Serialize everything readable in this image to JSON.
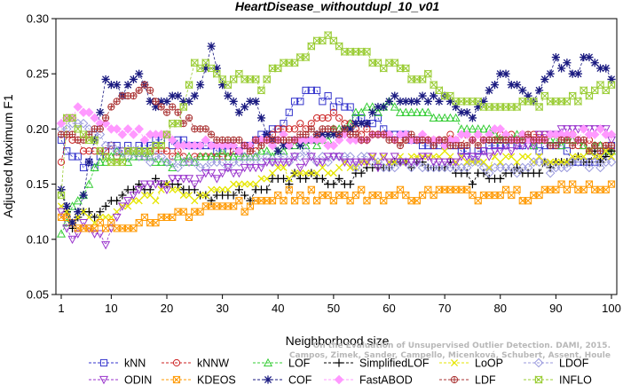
{
  "chart_data": {
    "type": "line",
    "title": "HeartDisease_withoutdupl_10_v01",
    "xlabel": "Neighborhood size",
    "ylabel": "Adjusted Maximum F1",
    "xlim": [
      1,
      100
    ],
    "ylim": [
      0.05,
      0.3
    ],
    "x_ticks": [
      "1",
      "10",
      "20",
      "30",
      "40",
      "50",
      "60",
      "70",
      "80",
      "90",
      "100"
    ],
    "y_ticks": [
      "0.05",
      "0.10",
      "0.15",
      "0.20",
      "0.25",
      "0.30"
    ],
    "grid": false,
    "legend_position": "bottom",
    "watermark_lines": [
      "Campos, Zimek, Sander, Campello, Micenková, Schubert, Assent, Houle",
      "On the Evaluation of Unsupervised Outlier Detection. DAMI, 2015."
    ],
    "series": [
      {
        "name": "kNN",
        "color": "#3333cc",
        "marker": "square",
        "anchors": [
          [
            1,
            0.188
          ],
          [
            3,
            0.175
          ],
          [
            5,
            0.165
          ],
          [
            7,
            0.17
          ],
          [
            10,
            0.18
          ],
          [
            15,
            0.185
          ],
          [
            20,
            0.19
          ],
          [
            25,
            0.185
          ],
          [
            30,
            0.18
          ],
          [
            35,
            0.185
          ],
          [
            40,
            0.2
          ],
          [
            45,
            0.235
          ],
          [
            50,
            0.225
          ],
          [
            55,
            0.21
          ],
          [
            60,
            0.2
          ],
          [
            65,
            0.19
          ],
          [
            70,
            0.183
          ],
          [
            75,
            0.18
          ],
          [
            80,
            0.185
          ],
          [
            85,
            0.185
          ],
          [
            90,
            0.185
          ],
          [
            95,
            0.165
          ],
          [
            100,
            0.18
          ]
        ]
      },
      {
        "name": "kNNW",
        "color": "#cc2222",
        "marker": "circle",
        "anchors": [
          [
            1,
            0.17
          ],
          [
            2,
            0.195
          ],
          [
            5,
            0.185
          ],
          [
            8,
            0.18
          ],
          [
            10,
            0.18
          ],
          [
            15,
            0.178
          ],
          [
            20,
            0.175
          ],
          [
            25,
            0.175
          ],
          [
            30,
            0.175
          ],
          [
            35,
            0.18
          ],
          [
            40,
            0.2
          ],
          [
            45,
            0.205
          ],
          [
            50,
            0.21
          ],
          [
            55,
            0.2
          ],
          [
            60,
            0.195
          ],
          [
            65,
            0.19
          ],
          [
            70,
            0.19
          ],
          [
            75,
            0.19
          ],
          [
            80,
            0.19
          ],
          [
            85,
            0.193
          ],
          [
            90,
            0.193
          ],
          [
            95,
            0.19
          ],
          [
            100,
            0.18
          ]
        ]
      },
      {
        "name": "LOF",
        "color": "#33cc33",
        "marker": "triangle-up",
        "anchors": [
          [
            1,
            0.105
          ],
          [
            3,
            0.13
          ],
          [
            5,
            0.14
          ],
          [
            7,
            0.16
          ],
          [
            10,
            0.175
          ],
          [
            15,
            0.175
          ],
          [
            20,
            0.17
          ],
          [
            25,
            0.17
          ],
          [
            30,
            0.175
          ],
          [
            35,
            0.175
          ],
          [
            40,
            0.18
          ],
          [
            45,
            0.185
          ],
          [
            50,
            0.195
          ],
          [
            55,
            0.215
          ],
          [
            60,
            0.22
          ],
          [
            65,
            0.215
          ],
          [
            70,
            0.21
          ],
          [
            75,
            0.2
          ],
          [
            80,
            0.195
          ],
          [
            85,
            0.19
          ],
          [
            90,
            0.19
          ],
          [
            95,
            0.185
          ],
          [
            100,
            0.18
          ]
        ]
      },
      {
        "name": "SimplifiedLOF",
        "color": "#000000",
        "marker": "plus",
        "anchors": [
          [
            1,
            0.14
          ],
          [
            3,
            0.11
          ],
          [
            5,
            0.125
          ],
          [
            7,
            0.12
          ],
          [
            10,
            0.135
          ],
          [
            15,
            0.15
          ],
          [
            20,
            0.15
          ],
          [
            25,
            0.14
          ],
          [
            30,
            0.14
          ],
          [
            35,
            0.14
          ],
          [
            40,
            0.155
          ],
          [
            45,
            0.155
          ],
          [
            50,
            0.15
          ],
          [
            55,
            0.16
          ],
          [
            60,
            0.168
          ],
          [
            65,
            0.17
          ],
          [
            70,
            0.168
          ],
          [
            75,
            0.155
          ],
          [
            80,
            0.16
          ],
          [
            85,
            0.16
          ],
          [
            90,
            0.17
          ],
          [
            95,
            0.175
          ],
          [
            100,
            0.175
          ]
        ]
      },
      {
        "name": "LoOP",
        "color": "#e6e600",
        "marker": "x",
        "anchors": [
          [
            1,
            0.13
          ],
          [
            3,
            0.12
          ],
          [
            5,
            0.12
          ],
          [
            7,
            0.115
          ],
          [
            10,
            0.125
          ],
          [
            15,
            0.135
          ],
          [
            20,
            0.145
          ],
          [
            25,
            0.14
          ],
          [
            30,
            0.145
          ],
          [
            35,
            0.15
          ],
          [
            40,
            0.16
          ],
          [
            45,
            0.16
          ],
          [
            50,
            0.165
          ],
          [
            55,
            0.17
          ],
          [
            60,
            0.172
          ],
          [
            65,
            0.175
          ],
          [
            70,
            0.175
          ],
          [
            75,
            0.17
          ],
          [
            80,
            0.17
          ],
          [
            85,
            0.172
          ],
          [
            90,
            0.172
          ],
          [
            95,
            0.175
          ],
          [
            100,
            0.178
          ]
        ]
      },
      {
        "name": "LDOF",
        "color": "#9999dd",
        "marker": "diamond",
        "anchors": [
          [
            1,
            0.2
          ],
          [
            3,
            0.205
          ],
          [
            5,
            0.21
          ],
          [
            7,
            0.195
          ],
          [
            10,
            0.18
          ],
          [
            15,
            0.175
          ],
          [
            20,
            0.17
          ],
          [
            25,
            0.168
          ],
          [
            30,
            0.17
          ],
          [
            35,
            0.17
          ],
          [
            40,
            0.175
          ],
          [
            45,
            0.175
          ],
          [
            50,
            0.172
          ],
          [
            55,
            0.17
          ],
          [
            60,
            0.17
          ],
          [
            65,
            0.168
          ],
          [
            70,
            0.165
          ],
          [
            75,
            0.168
          ],
          [
            80,
            0.162
          ],
          [
            85,
            0.165
          ],
          [
            90,
            0.165
          ],
          [
            95,
            0.168
          ],
          [
            100,
            0.17
          ]
        ]
      },
      {
        "name": "ODIN",
        "color": "#9933cc",
        "marker": "triangle-down",
        "anchors": [
          [
            1,
            0.12
          ],
          [
            3,
            0.1
          ],
          [
            5,
            0.11
          ],
          [
            7,
            0.105
          ],
          [
            9,
            0.098
          ],
          [
            11,
            0.12
          ],
          [
            15,
            0.145
          ],
          [
            20,
            0.15
          ],
          [
            25,
            0.155
          ],
          [
            30,
            0.16
          ],
          [
            35,
            0.165
          ],
          [
            40,
            0.17
          ],
          [
            45,
            0.17
          ],
          [
            50,
            0.172
          ],
          [
            55,
            0.17
          ],
          [
            60,
            0.17
          ],
          [
            65,
            0.17
          ],
          [
            70,
            0.172
          ],
          [
            75,
            0.175
          ],
          [
            80,
            0.18
          ],
          [
            85,
            0.185
          ],
          [
            90,
            0.195
          ],
          [
            95,
            0.2
          ],
          [
            100,
            0.195
          ]
        ]
      },
      {
        "name": "KDEOS",
        "color": "#ff9900",
        "marker": "square-cross",
        "anchors": [
          [
            1,
            0.125
          ],
          [
            3,
            0.115
          ],
          [
            5,
            0.11
          ],
          [
            7,
            0.115
          ],
          [
            10,
            0.11
          ],
          [
            15,
            0.115
          ],
          [
            20,
            0.12
          ],
          [
            25,
            0.125
          ],
          [
            30,
            0.13
          ],
          [
            35,
            0.13
          ],
          [
            40,
            0.14
          ],
          [
            45,
            0.14
          ],
          [
            50,
            0.14
          ],
          [
            55,
            0.14
          ],
          [
            60,
            0.14
          ],
          [
            65,
            0.14
          ],
          [
            70,
            0.145
          ],
          [
            75,
            0.14
          ],
          [
            80,
            0.145
          ],
          [
            85,
            0.14
          ],
          [
            90,
            0.145
          ],
          [
            95,
            0.15
          ],
          [
            100,
            0.147
          ]
        ]
      },
      {
        "name": "COF",
        "color": "#1a1a80",
        "marker": "star",
        "anchors": [
          [
            1,
            0.14
          ],
          [
            3,
            0.12
          ],
          [
            5,
            0.14
          ],
          [
            7,
            0.19
          ],
          [
            9,
            0.245
          ],
          [
            12,
            0.23
          ],
          [
            15,
            0.25
          ],
          [
            18,
            0.22
          ],
          [
            20,
            0.23
          ],
          [
            25,
            0.225
          ],
          [
            28,
            0.275
          ],
          [
            30,
            0.24
          ],
          [
            33,
            0.215
          ],
          [
            36,
            0.225
          ],
          [
            38,
            0.2
          ],
          [
            40,
            0.18
          ],
          [
            45,
            0.19
          ],
          [
            50,
            0.195
          ],
          [
            55,
            0.205
          ],
          [
            60,
            0.225
          ],
          [
            65,
            0.23
          ],
          [
            70,
            0.225
          ],
          [
            75,
            0.215
          ],
          [
            80,
            0.25
          ],
          [
            83,
            0.24
          ],
          [
            86,
            0.23
          ],
          [
            90,
            0.26
          ],
          [
            94,
            0.255
          ],
          [
            96,
            0.265
          ],
          [
            100,
            0.245
          ]
        ]
      },
      {
        "name": "FastABOD",
        "color": "#ff99ff",
        "marker": "diamond-filled",
        "anchors": [
          [
            1,
            0.2
          ],
          [
            4,
            0.215
          ],
          [
            7,
            0.21
          ],
          [
            10,
            0.2
          ],
          [
            15,
            0.195
          ],
          [
            20,
            0.19
          ],
          [
            25,
            0.185
          ],
          [
            30,
            0.185
          ],
          [
            35,
            0.185
          ],
          [
            40,
            0.19
          ],
          [
            45,
            0.19
          ],
          [
            50,
            0.19
          ],
          [
            55,
            0.19
          ],
          [
            60,
            0.195
          ],
          [
            65,
            0.19
          ],
          [
            70,
            0.19
          ],
          [
            75,
            0.195
          ],
          [
            80,
            0.195
          ],
          [
            85,
            0.19
          ],
          [
            90,
            0.195
          ],
          [
            95,
            0.195
          ],
          [
            100,
            0.195
          ]
        ]
      },
      {
        "name": "LDF",
        "color": "#aa3333",
        "marker": "circle-plus",
        "anchors": [
          [
            1,
            0.195
          ],
          [
            5,
            0.19
          ],
          [
            8,
            0.2
          ],
          [
            10,
            0.22
          ],
          [
            13,
            0.23
          ],
          [
            16,
            0.24
          ],
          [
            19,
            0.22
          ],
          [
            22,
            0.215
          ],
          [
            25,
            0.2
          ],
          [
            30,
            0.19
          ],
          [
            35,
            0.185
          ],
          [
            40,
            0.19
          ],
          [
            45,
            0.195
          ],
          [
            50,
            0.2
          ],
          [
            55,
            0.195
          ],
          [
            60,
            0.19
          ],
          [
            65,
            0.19
          ],
          [
            70,
            0.19
          ],
          [
            75,
            0.185
          ],
          [
            80,
            0.19
          ],
          [
            85,
            0.19
          ],
          [
            90,
            0.19
          ],
          [
            95,
            0.185
          ],
          [
            100,
            0.18
          ]
        ]
      },
      {
        "name": "INFLO",
        "color": "#99cc33",
        "marker": "hourglass",
        "anchors": [
          [
            1,
            0.14
          ],
          [
            2,
            0.215
          ],
          [
            5,
            0.195
          ],
          [
            8,
            0.18
          ],
          [
            11,
            0.17
          ],
          [
            15,
            0.18
          ],
          [
            20,
            0.19
          ],
          [
            23,
            0.22
          ],
          [
            25,
            0.255
          ],
          [
            28,
            0.255
          ],
          [
            30,
            0.245
          ],
          [
            33,
            0.245
          ],
          [
            35,
            0.25
          ],
          [
            37,
            0.24
          ],
          [
            40,
            0.255
          ],
          [
            43,
            0.265
          ],
          [
            46,
            0.27
          ],
          [
            49,
            0.285
          ],
          [
            52,
            0.275
          ],
          [
            55,
            0.27
          ],
          [
            58,
            0.26
          ],
          [
            61,
            0.255
          ],
          [
            64,
            0.25
          ],
          [
            67,
            0.245
          ],
          [
            70,
            0.23
          ],
          [
            75,
            0.225
          ],
          [
            80,
            0.22
          ],
          [
            85,
            0.225
          ],
          [
            90,
            0.225
          ],
          [
            95,
            0.23
          ],
          [
            100,
            0.24
          ]
        ]
      }
    ]
  }
}
